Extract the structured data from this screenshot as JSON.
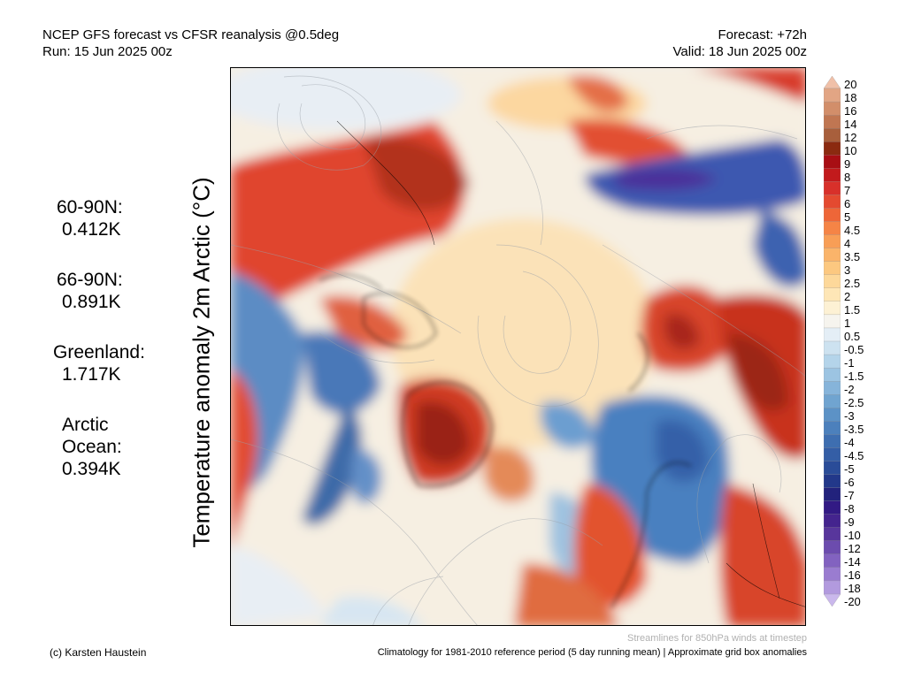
{
  "header": {
    "title": "NCEP GFS forecast vs CFSR reanalysis @0.5deg",
    "run": "Run: 15 Jun 2025 00z",
    "forecast": "Forecast: +72h",
    "valid": "Valid: 18 Jun 2025 00z"
  },
  "y_label": "Temperature anomaly 2m Arctic (°C)",
  "regional_anomalies": [
    {
      "region": "60-90N:",
      "value": "0.412K"
    },
    {
      "region": "66-90N:",
      "value": "0.891K"
    },
    {
      "region": "Greenland:",
      "value": "1.717K"
    },
    {
      "region": "Arctic Ocean:",
      "value": "0.394K"
    }
  ],
  "colorbar": {
    "labels": [
      "20",
      "18",
      "16",
      "14",
      "12",
      "10",
      "9",
      "8",
      "7",
      "6",
      "5",
      "4.5",
      "4",
      "3.5",
      "3",
      "2.5",
      "2",
      "1.5",
      "1",
      "0.5",
      "-0.5",
      "-1",
      "-1.5",
      "-2",
      "-2.5",
      "-3",
      "-3.5",
      "-4",
      "-4.5",
      "-5",
      "-6",
      "-7",
      "-8",
      "-9",
      "-10",
      "-12",
      "-14",
      "-16",
      "-18",
      "-20"
    ],
    "colors": [
      "#f0c0a8",
      "#e2a584",
      "#d28e6a",
      "#c07652",
      "#a85f3c",
      "#8b2a10",
      "#a80e14",
      "#c21a1c",
      "#d8302a",
      "#e44a30",
      "#ee6638",
      "#f58446",
      "#f89e56",
      "#fab46a",
      "#fcc880",
      "#fdd89a",
      "#fee6b6",
      "#fdf1d4",
      "#f6f4ee",
      "#e4eef6",
      "#cde2f0",
      "#b4d4ea",
      "#9cc4e2",
      "#86b4da",
      "#70a4d0",
      "#5c92c6",
      "#4c80bc",
      "#3e6eb0",
      "#345ea6",
      "#2a4c98",
      "#22388a",
      "#22227c",
      "#321a84",
      "#44248e",
      "#58369c",
      "#6c4cae",
      "#8262c0",
      "#9a7cd0",
      "#b29ade",
      "#cab8ec"
    ]
  },
  "footer": {
    "copyright": "(c) Karsten Haustein",
    "climatology": "Climatology for 1981-2010 reference period (5 day running mean) | Approximate grid box anomalies",
    "streamlines": "Streamlines for 850hPa winds at timestep"
  }
}
